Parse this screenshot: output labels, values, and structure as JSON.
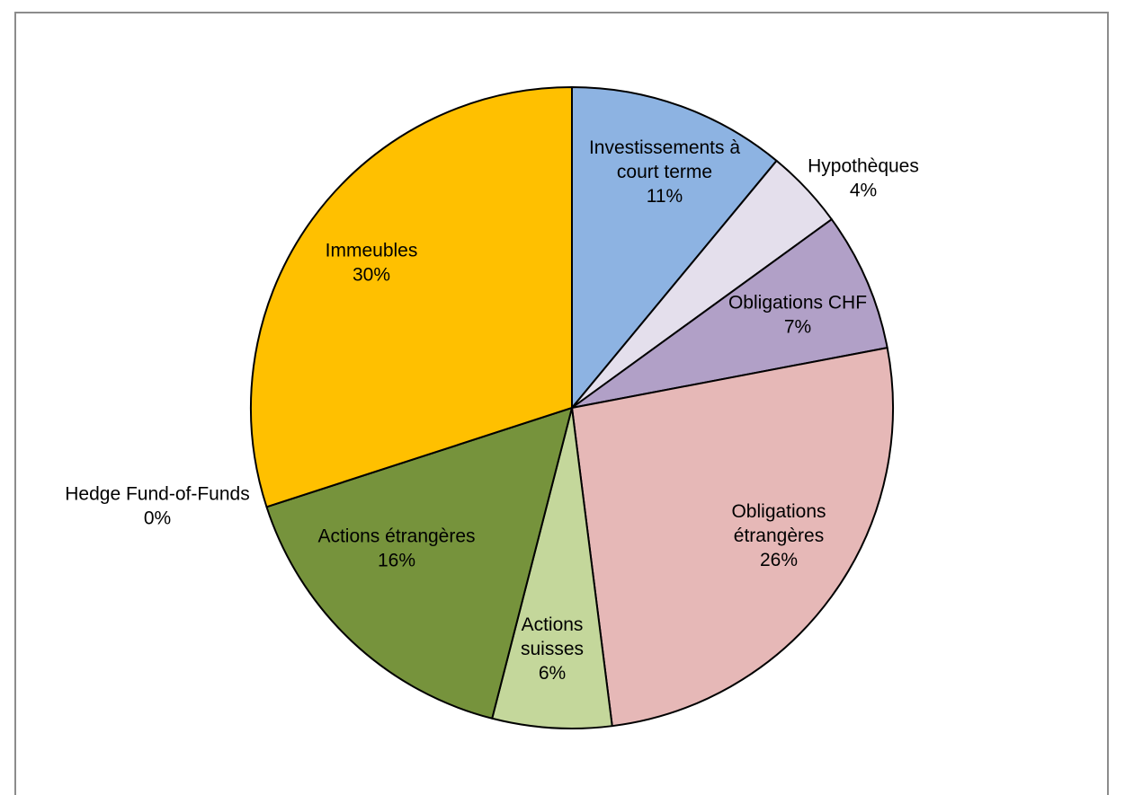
{
  "chart_data": {
    "type": "pie",
    "title": "",
    "slices": [
      {
        "label_lines": [
          "Investissements à",
          "court terme"
        ],
        "value": 11,
        "pct_label": "11%",
        "color": "#8DB3E2"
      },
      {
        "label_lines": [
          "Hypothèques"
        ],
        "value": 4,
        "pct_label": "4%",
        "color": "#E4DFEC"
      },
      {
        "label_lines": [
          "Obligations CHF"
        ],
        "value": 7,
        "pct_label": "7%",
        "color": "#B1A0C7"
      },
      {
        "label_lines": [
          "Obligations",
          "étrangères"
        ],
        "value": 26,
        "pct_label": "26%",
        "color": "#E6B8B7"
      },
      {
        "label_lines": [
          "Actions",
          "suisses"
        ],
        "value": 6,
        "pct_label": "6%",
        "color": "#C4D79B"
      },
      {
        "label_lines": [
          "Actions étrangères"
        ],
        "value": 16,
        "pct_label": "16%",
        "color": "#76933C"
      },
      {
        "label_lines": [
          "Hedge Fund-of-Funds"
        ],
        "value": 0,
        "pct_label": "0%",
        "color": "#4F81BD"
      },
      {
        "label_lines": [
          "Immeubles"
        ],
        "value": 30,
        "pct_label": "30%",
        "color": "#FFC000"
      }
    ],
    "start": "12 o'clock",
    "direction": "clockwise",
    "legend": "none",
    "slice_border_color": "#000000"
  }
}
